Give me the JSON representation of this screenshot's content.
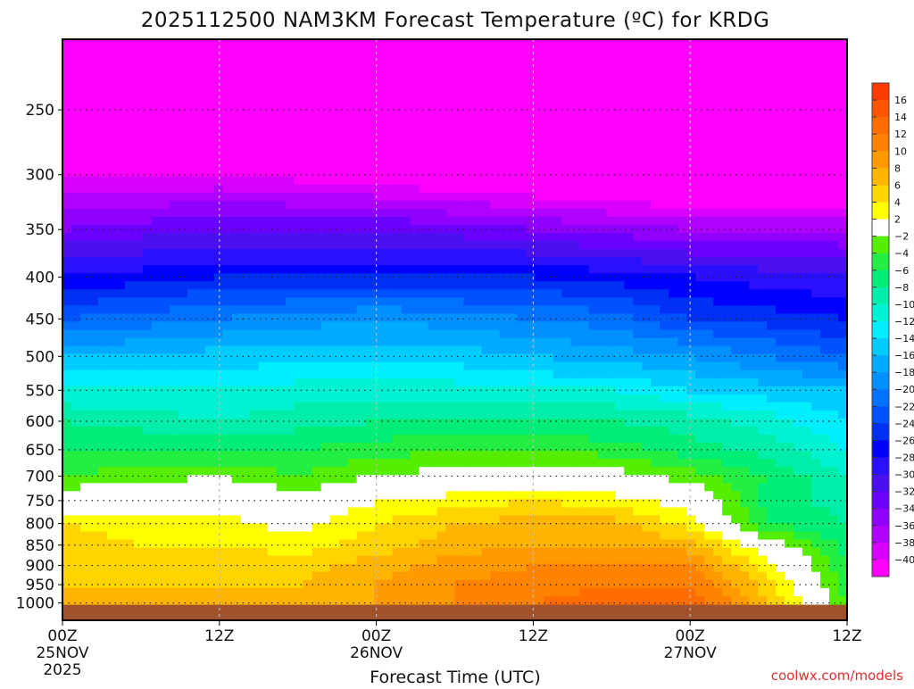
{
  "chart_data": {
    "type": "heatmap",
    "title": "2025112500 NAM3KM Forecast Temperature (ºC) for KRDG",
    "xlabel": "Forecast Time (UTC)",
    "ylabel": "",
    "credit": "coolwx.com/models",
    "x_hours": [
      0,
      6,
      12,
      18,
      24,
      30,
      36,
      42,
      48,
      54,
      60
    ],
    "xlim": [
      0,
      60
    ],
    "x_ticks": [
      {
        "hour": 0,
        "lines": [
          "00Z",
          "25NOV",
          "2025"
        ]
      },
      {
        "hour": 12,
        "lines": [
          "12Z"
        ]
      },
      {
        "hour": 24,
        "lines": [
          "00Z",
          "26NOV"
        ]
      },
      {
        "hour": 36,
        "lines": [
          "12Z"
        ]
      },
      {
        "hour": 48,
        "lines": [
          "00Z",
          "27NOV"
        ]
      },
      {
        "hour": 60,
        "lines": [
          "12Z"
        ]
      }
    ],
    "y_scale": "log-pressure",
    "ylim": [
      1050,
      205
    ],
    "y_ticks": [
      1000,
      950,
      900,
      850,
      800,
      750,
      700,
      650,
      600,
      550,
      500,
      450,
      400,
      350,
      300,
      250
    ],
    "pressure_levels": [
      1000,
      950,
      900,
      850,
      800,
      750,
      700,
      650,
      600,
      550,
      500,
      450,
      400,
      350,
      300,
      250,
      200
    ],
    "temperature_c": [
      [
        7,
        7,
        6,
        6,
        8,
        10,
        12,
        13,
        14,
        6,
        -4
      ],
      [
        6,
        6,
        6,
        6,
        8,
        10,
        11,
        12,
        12,
        5,
        -5
      ],
      [
        6,
        5,
        6,
        5,
        7,
        9,
        10,
        10,
        10,
        3,
        -6
      ],
      [
        5,
        4,
        4,
        3,
        5,
        7,
        8,
        8,
        7,
        0,
        -7
      ],
      [
        4,
        3,
        3,
        1,
        4,
        6,
        7,
        7,
        3,
        -6,
        -8
      ],
      [
        0,
        1,
        1,
        -1,
        2,
        3,
        4,
        3,
        1,
        -7,
        -9
      ],
      [
        -4,
        -3,
        -2,
        -4,
        -2,
        -1,
        0,
        -1,
        -3,
        -6,
        -10
      ],
      [
        -6,
        -6,
        -6,
        -6,
        -5,
        -4,
        -4,
        -5,
        -7,
        -9,
        -12
      ],
      [
        -8,
        -9,
        -10,
        -9,
        -8,
        -8,
        -8,
        -8,
        -9,
        -11,
        -14
      ],
      [
        -12,
        -12,
        -12,
        -11,
        -11,
        -11,
        -12,
        -12,
        -14,
        -15,
        -16
      ],
      [
        -16,
        -16,
        -15,
        -15,
        -15,
        -15,
        -16,
        -17,
        -18,
        -20,
        -22
      ],
      [
        -22,
        -21,
        -20,
        -19,
        -18,
        -19,
        -20,
        -21,
        -24,
        -25,
        -26
      ],
      [
        -28,
        -27,
        -26,
        -26,
        -26,
        -26,
        -26,
        -27,
        -28,
        -29,
        -30
      ],
      [
        -34,
        -33,
        -32,
        -32,
        -32,
        -33,
        -34,
        -35,
        -36,
        -36,
        -36
      ],
      [
        -40,
        -40,
        -40,
        -41,
        -42,
        -43,
        -44,
        -45,
        -46,
        -46,
        -46
      ],
      [
        -50,
        -51,
        -52,
        -52,
        -52,
        -52,
        -52,
        -52,
        -52,
        -52,
        -52
      ],
      [
        -58,
        -58,
        -58,
        -57,
        -56,
        -56,
        -56,
        -56,
        -56,
        -55,
        -54
      ]
    ],
    "colorbar": {
      "boundaries": [
        16,
        14,
        12,
        10,
        8,
        6,
        4,
        2,
        -2,
        -4,
        -6,
        -8,
        -10,
        -12,
        -14,
        -16,
        -18,
        -20,
        -22,
        -24,
        -26,
        -28,
        -30,
        -32,
        -34,
        -36,
        -38,
        -40
      ],
      "colors": [
        "#ff3a00",
        "#ff5500",
        "#ff6c00",
        "#ff8200",
        "#ff9a00",
        "#ffb400",
        "#ffd400",
        "#ffff00",
        "#ffffff",
        "#55ee00",
        "#22ee44",
        "#00ee77",
        "#00eeaa",
        "#00f2d2",
        "#00eeff",
        "#00ccff",
        "#00aaff",
        "#0090ff",
        "#0072ff",
        "#0052ff",
        "#0030f4",
        "#0000ff",
        "#2a10ff",
        "#4a10f0",
        "#6a00ff",
        "#9000ff",
        "#b000ff",
        "#d800ff",
        "#ff00ff"
      ]
    },
    "ground_color": "#a0522d"
  }
}
